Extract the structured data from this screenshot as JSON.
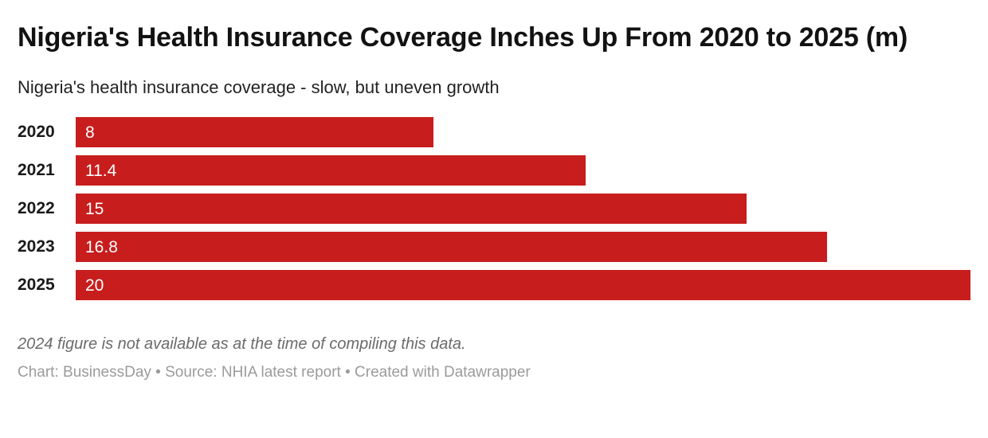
{
  "header": {
    "title": "Nigeria's Health Insurance Coverage Inches Up From 2020 to 2025 (m)",
    "subtitle": "Nigeria's health insurance coverage - slow, but uneven growth"
  },
  "chart_data": {
    "type": "bar",
    "orientation": "horizontal",
    "title": "Nigeria's Health Insurance Coverage Inches Up From 2020 to 2025 (m)",
    "subtitle": "Nigeria's health insurance coverage - slow, but uneven growth",
    "categories": [
      "2020",
      "2021",
      "2022",
      "2023",
      "2025"
    ],
    "values": [
      8,
      11.4,
      15,
      16.8,
      20
    ],
    "value_labels": [
      "8",
      "11.4",
      "15",
      "16.8",
      "20"
    ],
    "xlim": [
      0,
      20
    ],
    "grid": false,
    "legend": "none",
    "bar_color": "#c71e1d",
    "value_label_color": "#ffffff",
    "category_label_color": "#1a1a1a"
  },
  "footer": {
    "note": "2024 figure is not available as at the time of compiling this data.",
    "byline": "Chart: BusinessDay • Source: NHIA latest report • Created with Datawrapper"
  }
}
